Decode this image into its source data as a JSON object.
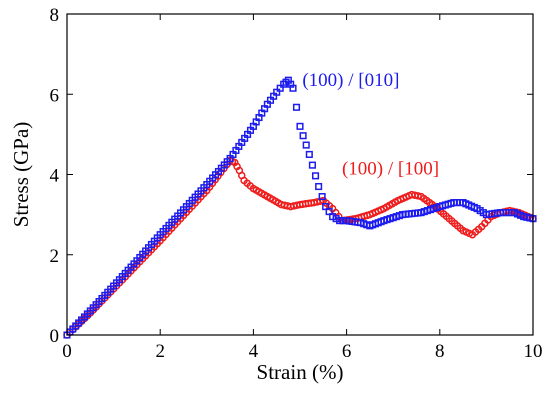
{
  "chart_data": {
    "type": "scatter",
    "title": "",
    "xlabel": "Strain (%)",
    "ylabel": "Stress (GPa)",
    "xlim": [
      0,
      10
    ],
    "ylim": [
      0,
      8
    ],
    "xticks": [
      "0",
      "2",
      "4",
      "6",
      "8",
      "10"
    ],
    "yticks": [
      "0",
      "2",
      "4",
      "6",
      "8"
    ],
    "grid": false,
    "legend": "none",
    "series": [
      {
        "name": "(100) / [100]",
        "color": "#ee1c1c",
        "marker": "circle",
        "x": [
          0,
          0.5,
          1,
          1.5,
          2,
          2.5,
          3,
          3.3,
          3.5,
          3.6,
          3.7,
          3.8,
          4.0,
          4.3,
          4.6,
          4.8,
          5.0,
          5.3,
          5.5,
          5.7,
          5.9,
          6.2,
          6.5,
          6.8,
          7.1,
          7.4,
          7.6,
          7.9,
          8.2,
          8.5,
          8.7,
          8.9,
          9.1,
          9.3,
          9.5,
          9.7,
          9.9,
          10.0
        ],
        "y": [
          0,
          0.55,
          1.15,
          1.75,
          2.35,
          2.98,
          3.6,
          4.05,
          4.35,
          4.3,
          4.1,
          3.85,
          3.65,
          3.45,
          3.25,
          3.2,
          3.25,
          3.3,
          3.35,
          3.15,
          2.85,
          2.9,
          3.0,
          3.15,
          3.35,
          3.5,
          3.45,
          3.2,
          2.9,
          2.6,
          2.5,
          2.7,
          2.95,
          3.05,
          3.1,
          3.05,
          2.95,
          2.9
        ]
      },
      {
        "name": "(100) / [010]",
        "color": "#1c1cee",
        "marker": "square",
        "x": [
          0,
          0.5,
          1,
          1.5,
          2,
          2.5,
          3,
          3.5,
          4,
          4.3,
          4.5,
          4.65,
          4.75,
          4.85,
          5.0,
          5.2,
          5.4,
          5.55,
          5.7,
          5.85,
          6.0,
          6.3,
          6.5,
          6.8,
          7.2,
          7.6,
          8.0,
          8.3,
          8.5,
          8.8,
          9.0,
          9.3,
          9.6,
          9.8,
          10.0
        ],
        "y": [
          0,
          0.6,
          1.22,
          1.85,
          2.5,
          3.12,
          3.75,
          4.4,
          5.2,
          5.75,
          6.05,
          6.25,
          6.35,
          6.15,
          5.2,
          4.5,
          3.7,
          3.2,
          2.95,
          2.85,
          2.85,
          2.8,
          2.72,
          2.85,
          3.0,
          3.05,
          3.2,
          3.3,
          3.3,
          3.15,
          3.0,
          3.05,
          3.05,
          2.95,
          2.9
        ]
      }
    ]
  }
}
